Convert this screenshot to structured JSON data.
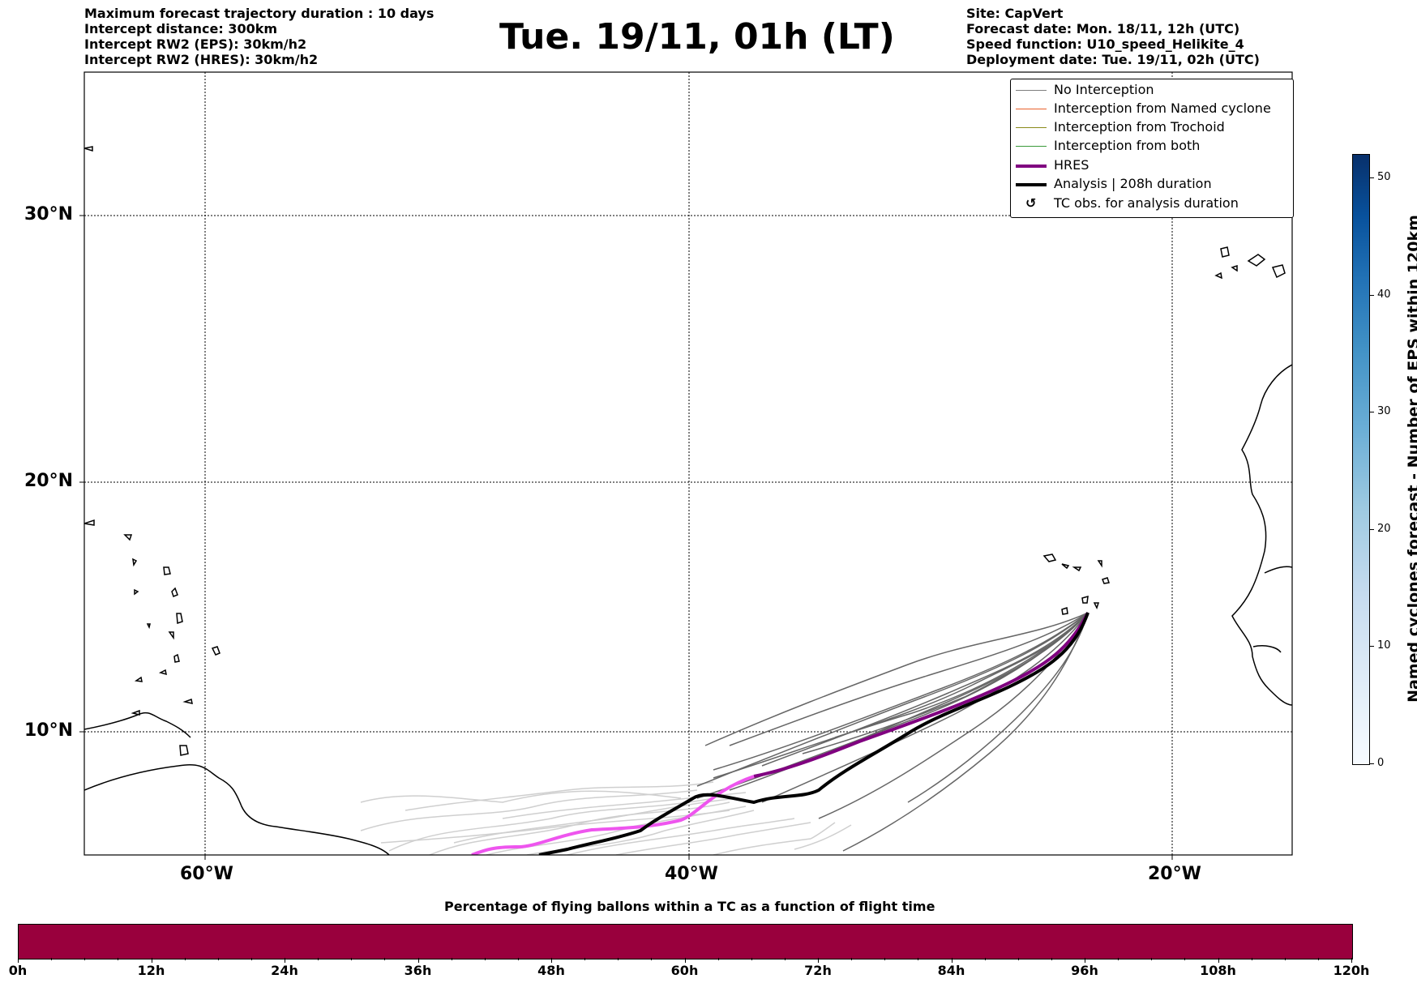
{
  "header": {
    "left_lines": [
      "Maximum forecast trajectory duration : 10 days",
      "Intercept distance: 300km",
      "Intercept RW2 (EPS):  30km/h2",
      "Intercept RW2 (HRES): 30km/h2"
    ],
    "right_lines": [
      "Site: CapVert",
      "Forecast date: Mon. 18/11, 12h (UTC)",
      "Speed function: U10_speed_Helikite_4",
      "Deployment date: Tue. 19/11, 02h (UTC)"
    ]
  },
  "title": "Tue. 19/11, 01h (LT)",
  "map": {
    "lat_labels": [
      "30°N",
      "20°N",
      "10°N"
    ],
    "lon_labels": [
      "60°W",
      "40°W",
      "20°W"
    ],
    "lon_range": [
      -65,
      -15
    ],
    "lat_range": [
      5,
      36.3
    ],
    "gridlines": "dotted"
  },
  "legend": {
    "items": [
      {
        "label": "No Interception",
        "color": "#7f7f7f"
      },
      {
        "label": "Interception from Named cyclone",
        "color": "#e8602c"
      },
      {
        "label": "Interception from Trochoid",
        "color": "#8a8a1a"
      },
      {
        "label": "Interception from both",
        "color": "#3a9a3a"
      },
      {
        "label": "HRES",
        "color": "#800080"
      },
      {
        "label": "Analysis | 208h duration",
        "color": "#000000"
      },
      {
        "label": "TC obs. for analysis duration",
        "icon": "cyclone-icon"
      }
    ]
  },
  "colorbar": {
    "label": "Named cyclones forecast - Number of EPS within 120km",
    "ticks": [
      "0",
      "10",
      "20",
      "30",
      "40",
      "50"
    ],
    "range": [
      0,
      52
    ],
    "colormap": "Blues"
  },
  "progress_bar": {
    "title": "Percentage of flying ballons within a TC as a function of flight time",
    "tick_labels": [
      "0h",
      "12h",
      "24h",
      "36h",
      "48h",
      "60h",
      "72h",
      "84h",
      "96h",
      "108h",
      "120h"
    ],
    "fill_color": "#99003d"
  }
}
